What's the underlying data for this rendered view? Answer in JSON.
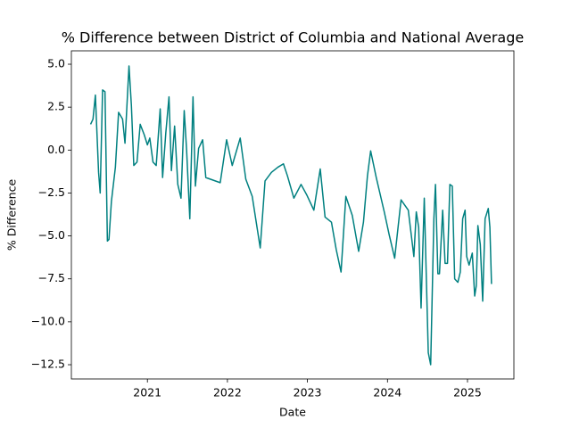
{
  "chart_data": {
    "type": "line",
    "title": "% Difference between District of Columbia and National Average",
    "x_label": "Date",
    "y_label": "% Difference",
    "color": "#008080",
    "x": [
      2020.29,
      2020.32,
      2020.35,
      2020.39,
      2020.41,
      2020.44,
      2020.47,
      2020.5,
      2020.52,
      2020.55,
      2020.6,
      2020.64,
      2020.69,
      2020.72,
      2020.77,
      2020.8,
      2020.83,
      2020.87,
      2020.91,
      2020.96,
      2021.0,
      2021.03,
      2021.07,
      2021.11,
      2021.16,
      2021.19,
      2021.23,
      2021.27,
      2021.3,
      2021.34,
      2021.38,
      2021.42,
      2021.46,
      2021.49,
      2021.53,
      2021.57,
      2021.6,
      2021.64,
      2021.69,
      2021.73,
      2021.91,
      2021.99,
      2022.06,
      2022.16,
      2022.23,
      2022.31,
      2022.41,
      2022.47,
      2022.55,
      2022.63,
      2022.7,
      2022.75,
      2022.83,
      2022.92,
      2022.99,
      2023.08,
      2023.16,
      2023.22,
      2023.3,
      2023.36,
      2023.42,
      2023.48,
      2023.56,
      2023.64,
      2023.7,
      2023.75,
      2023.79,
      2023.86,
      2023.96,
      2024.02,
      2024.09,
      2024.17,
      2024.26,
      2024.33,
      2024.36,
      2024.39,
      2024.42,
      2024.46,
      2024.51,
      2024.54,
      2024.58,
      2024.6,
      2024.63,
      2024.65,
      2024.69,
      2024.72,
      2024.75,
      2024.78,
      2024.81,
      2024.84,
      2024.88,
      2024.91,
      2024.94,
      2024.97,
      2024.99,
      2025.02,
      2025.06,
      2025.09,
      2025.11,
      2025.13,
      2025.16,
      2025.19,
      2025.22,
      2025.26,
      2025.28,
      2025.3
    ],
    "values": [
      1.5,
      1.8,
      3.2,
      -1.3,
      -2.5,
      3.5,
      3.4,
      -5.3,
      -5.2,
      -3.0,
      -1.0,
      2.2,
      1.8,
      0.4,
      4.9,
      2.6,
      -0.9,
      -0.7,
      1.5,
      0.9,
      0.3,
      0.7,
      -0.7,
      -0.9,
      2.4,
      -1.6,
      1.0,
      3.1,
      -1.2,
      1.4,
      -2.0,
      -2.8,
      2.3,
      0.0,
      -4.0,
      3.1,
      -2.1,
      0.1,
      0.6,
      -1.6,
      -1.9,
      0.6,
      -0.9,
      0.7,
      -1.7,
      -2.7,
      -5.7,
      -1.8,
      -1.3,
      -1.0,
      -0.8,
      -1.5,
      -2.8,
      -2.0,
      -2.6,
      -3.5,
      -1.1,
      -3.9,
      -4.2,
      -5.8,
      -7.1,
      -2.7,
      -3.8,
      -5.9,
      -4.2,
      -1.5,
      -0.05,
      -1.6,
      -3.6,
      -4.9,
      -6.3,
      -2.9,
      -3.5,
      -6.2,
      -3.6,
      -4.5,
      -9.2,
      -2.8,
      -11.8,
      -12.5,
      -4.0,
      -2.0,
      -7.2,
      -7.2,
      -3.5,
      -6.6,
      -6.6,
      -2.0,
      -2.1,
      -7.5,
      -7.7,
      -7.1,
      -4.0,
      -3.5,
      -6.2,
      -6.7,
      -6.0,
      -8.5,
      -7.9,
      -4.4,
      -5.5,
      -8.8,
      -4.0,
      -3.4,
      -4.5,
      -7.8
    ],
    "xlim": [
      2020.05,
      2025.58
    ],
    "xticks": [
      2021,
      2022,
      2023,
      2024,
      2025
    ],
    "ylim": [
      -13.33,
      5.78
    ],
    "yticks": [
      {
        "value": -12.5,
        "label": "−12.5"
      },
      {
        "value": -10,
        "label": "−10.0"
      },
      {
        "value": -7.5,
        "label": "−7.5"
      },
      {
        "value": -5,
        "label": "−5.0"
      },
      {
        "value": -2.5,
        "label": "−2.5"
      },
      {
        "value": 0,
        "label": "0.0"
      },
      {
        "value": 2.5,
        "label": "2.5"
      },
      {
        "value": 5,
        "label": "5.0"
      }
    ]
  }
}
